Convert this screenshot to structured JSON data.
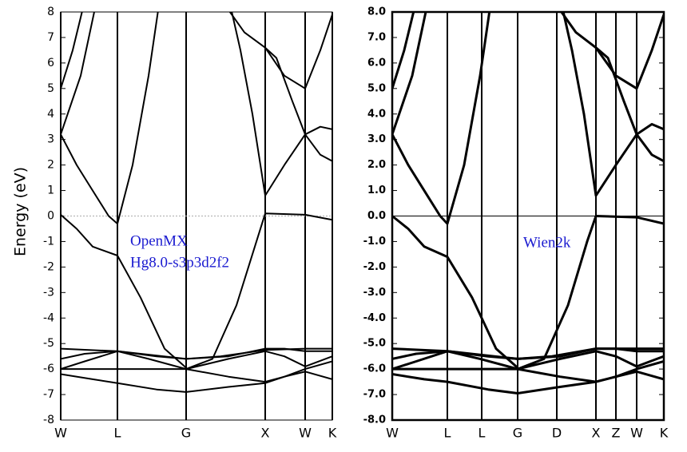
{
  "chart_data": [
    {
      "type": "line",
      "ylabel": "Energy (eV)",
      "color": "#000000",
      "line_width": 2,
      "frame": "thin",
      "hline": 0,
      "hline_style": "dotted",
      "annotations": [
        "OpenMX",
        "Hg8.0-s3p3d2f2"
      ],
      "xlim": [
        0,
        340
      ],
      "ylim": [
        -8,
        8
      ],
      "xticks": [
        {
          "value": 0,
          "label": "W"
        },
        {
          "value": 71,
          "label": "L"
        },
        {
          "value": 157,
          "label": "G"
        },
        {
          "value": 256,
          "label": "X"
        },
        {
          "value": 306,
          "label": "W"
        },
        {
          "value": 340,
          "label": "K"
        }
      ],
      "yticks": [
        8,
        7,
        6,
        5,
        4,
        3,
        2,
        1,
        0,
        -1,
        -2,
        -3,
        -4,
        -5,
        -6,
        -7,
        -8
      ],
      "series": [
        {
          "x": [
            0,
            40,
            71,
            120,
            157,
            210,
            256,
            280,
            306,
            340
          ],
          "values": [
            -6.2,
            -6.4,
            -6.55,
            -6.8,
            -6.9,
            -6.7,
            -6.55,
            -6.3,
            -6.1,
            -6.4
          ]
        },
        {
          "x": [
            0,
            71,
            157,
            210,
            256,
            280,
            306,
            340
          ],
          "values": [
            -6.0,
            -6.0,
            -6.0,
            -6.3,
            -6.5,
            -6.3,
            -6.0,
            -5.7
          ]
        },
        {
          "x": [
            0,
            30,
            71,
            110,
            157,
            210,
            256,
            280,
            306,
            340
          ],
          "values": [
            -6.0,
            -5.7,
            -5.3,
            -5.6,
            -6.0,
            -5.6,
            -5.3,
            -5.5,
            -5.9,
            -5.5
          ]
        },
        {
          "x": [
            0,
            30,
            71,
            120,
            157,
            210,
            256,
            280,
            306,
            340
          ],
          "values": [
            -5.6,
            -5.4,
            -5.3,
            -5.5,
            -5.6,
            -5.5,
            -5.2,
            -5.2,
            -5.3,
            -5.3
          ]
        },
        {
          "x": [
            0,
            71,
            157,
            200,
            256,
            306,
            340
          ],
          "values": [
            -5.2,
            -5.3,
            -5.6,
            -5.5,
            -5.25,
            -5.2,
            -5.2
          ]
        },
        {
          "x": [
            0,
            20,
            40,
            71,
            100,
            130,
            157
          ],
          "values": [
            0.05,
            -0.5,
            -1.2,
            -1.55,
            -3.2,
            -5.2,
            -5.95
          ]
        },
        {
          "x": [
            157,
            190,
            220,
            245,
            256,
            306,
            340
          ],
          "values": [
            -6.0,
            -5.6,
            -3.5,
            -1.0,
            0.1,
            0.05,
            -0.15
          ]
        },
        {
          "x": [
            0,
            20,
            40,
            60,
            71,
            90,
            110,
            124
          ],
          "values": [
            3.2,
            2.0,
            1.0,
            0.0,
            -0.3,
            2.0,
            5.5,
            8.5
          ]
        },
        {
          "x": [
            212,
            225,
            240,
            256,
            280,
            306,
            325,
            340
          ],
          "values": [
            8.3,
            6.5,
            4.0,
            0.8,
            2.0,
            3.2,
            3.5,
            3.4
          ]
        },
        {
          "x": [
            0,
            15,
            29
          ],
          "values": [
            5.0,
            6.5,
            8.3
          ]
        },
        {
          "x": [
            0,
            25,
            44
          ],
          "values": [
            3.2,
            5.5,
            8.3
          ]
        },
        {
          "x": [
            205,
            230,
            256,
            280,
            306,
            325,
            340
          ],
          "values": [
            8.3,
            7.2,
            6.6,
            5.5,
            5.0,
            6.5,
            7.9
          ]
        },
        {
          "x": [
            256,
            270,
            290,
            306,
            325,
            340
          ],
          "values": [
            6.6,
            6.2,
            4.5,
            3.2,
            2.4,
            2.15
          ]
        }
      ]
    },
    {
      "type": "line",
      "color": "#000000",
      "line_width": 3,
      "frame": "bold",
      "hline": 0,
      "hline_style": "solid",
      "annotations": [
        "Wien2k"
      ],
      "xlim": [
        0,
        340
      ],
      "ylim": [
        -8,
        8
      ],
      "xticks": [
        {
          "value": 0,
          "label": "W"
        },
        {
          "value": 69,
          "label": "L"
        },
        {
          "value": 112,
          "label": "L"
        },
        {
          "value": 157,
          "label": "G"
        },
        {
          "value": 206,
          "label": "D"
        },
        {
          "value": 255,
          "label": "X"
        },
        {
          "value": 280,
          "label": "Z"
        },
        {
          "value": 306,
          "label": "W"
        },
        {
          "value": 340,
          "label": "K"
        }
      ],
      "yticks": [
        {
          "value": 8,
          "label": "8.0"
        },
        {
          "value": 7,
          "label": "7.0"
        },
        {
          "value": 6,
          "label": "6.0"
        },
        {
          "value": 5,
          "label": "5.0"
        },
        {
          "value": 4,
          "label": "4.0"
        },
        {
          "value": 3,
          "label": "3.0"
        },
        {
          "value": 2,
          "label": "2.0"
        },
        {
          "value": 1,
          "label": "1.0"
        },
        {
          "value": 0,
          "label": "0.0"
        },
        {
          "value": -1,
          "label": "-1.0"
        },
        {
          "value": -2,
          "label": "-2.0"
        },
        {
          "value": -3,
          "label": "-3.0"
        },
        {
          "value": -4,
          "label": "-4.0"
        },
        {
          "value": -5,
          "label": "-5.0"
        },
        {
          "value": -6,
          "label": "-6.0"
        },
        {
          "value": -7,
          "label": "-7.0"
        },
        {
          "value": -8,
          "label": "-8.0"
        }
      ],
      "series": [
        {
          "x": [
            0,
            40,
            69,
            120,
            157,
            210,
            255,
            280,
            306,
            340
          ],
          "values": [
            -6.2,
            -6.4,
            -6.5,
            -6.8,
            -6.95,
            -6.7,
            -6.5,
            -6.3,
            -6.1,
            -6.4
          ]
        },
        {
          "x": [
            0,
            69,
            157,
            210,
            255,
            280,
            306,
            340
          ],
          "values": [
            -6.0,
            -6.0,
            -6.0,
            -6.3,
            -6.5,
            -6.3,
            -6.0,
            -5.7
          ]
        },
        {
          "x": [
            0,
            30,
            69,
            110,
            157,
            210,
            255,
            280,
            306,
            340
          ],
          "values": [
            -6.0,
            -5.7,
            -5.3,
            -5.6,
            -6.0,
            -5.6,
            -5.3,
            -5.5,
            -5.9,
            -5.5
          ]
        },
        {
          "x": [
            0,
            30,
            69,
            120,
            157,
            210,
            255,
            280,
            306,
            340
          ],
          "values": [
            -5.6,
            -5.4,
            -5.3,
            -5.5,
            -5.6,
            -5.5,
            -5.2,
            -5.2,
            -5.3,
            -5.3
          ]
        },
        {
          "x": [
            0,
            69,
            157,
            200,
            255,
            306,
            340
          ],
          "values": [
            -5.2,
            -5.3,
            -5.6,
            -5.5,
            -5.2,
            -5.2,
            -5.2
          ]
        },
        {
          "x": [
            0,
            20,
            40,
            69,
            100,
            130,
            157
          ],
          "values": [
            0.0,
            -0.5,
            -1.2,
            -1.6,
            -3.2,
            -5.2,
            -5.95
          ]
        },
        {
          "x": [
            157,
            190,
            220,
            244,
            255,
            306,
            340
          ],
          "values": [
            -6.0,
            -5.6,
            -3.5,
            -1.0,
            0.0,
            -0.05,
            -0.3
          ]
        },
        {
          "x": [
            0,
            20,
            40,
            60,
            69,
            90,
            110,
            124
          ],
          "values": [
            3.2,
            2.0,
            1.0,
            0.0,
            -0.3,
            2.0,
            5.5,
            8.5
          ]
        },
        {
          "x": [
            212,
            225,
            240,
            255,
            280,
            306,
            325,
            340
          ],
          "values": [
            8.3,
            6.5,
            4.0,
            0.8,
            2.0,
            3.2,
            3.6,
            3.4
          ]
        },
        {
          "x": [
            0,
            15,
            29
          ],
          "values": [
            5.0,
            6.5,
            8.3
          ]
        },
        {
          "x": [
            0,
            25,
            44
          ],
          "values": [
            3.2,
            5.5,
            8.3
          ]
        },
        {
          "x": [
            205,
            230,
            255,
            280,
            306,
            325,
            340
          ],
          "values": [
            8.3,
            7.2,
            6.6,
            5.5,
            5.0,
            6.5,
            7.9
          ]
        },
        {
          "x": [
            255,
            270,
            290,
            306,
            325,
            340
          ],
          "values": [
            6.6,
            6.2,
            4.5,
            3.2,
            2.4,
            2.15
          ]
        }
      ]
    }
  ]
}
